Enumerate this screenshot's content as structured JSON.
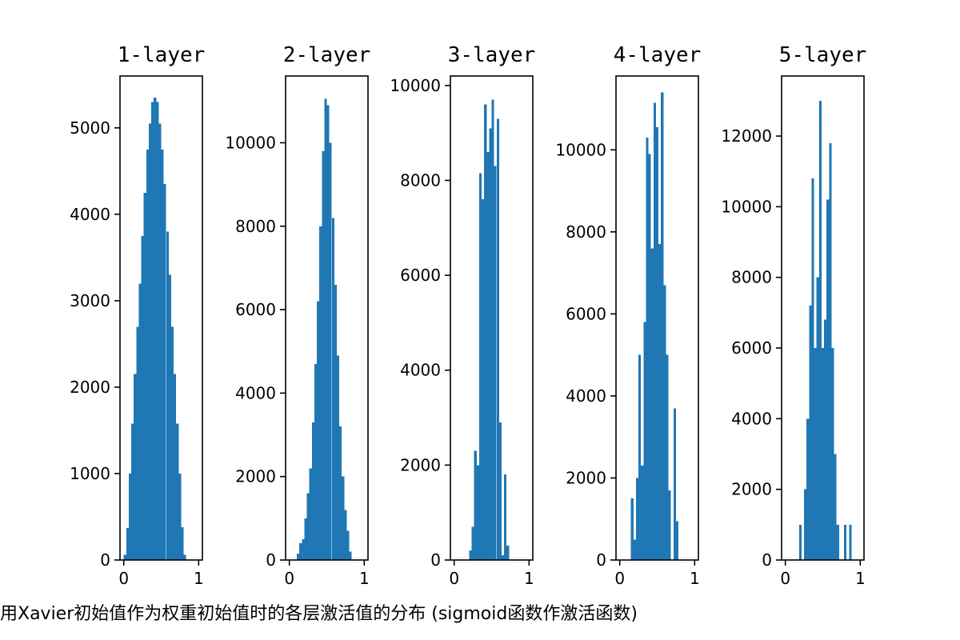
{
  "figure": {
    "caption": "用Xavier初始值作为权重初始值时的各层激活值的分布 (sigmoid函数作激活函数)"
  },
  "colors": {
    "bar": "#1f77b4",
    "axis": "#000000",
    "background": "#ffffff"
  },
  "chart_data": [
    {
      "type": "bar",
      "title": "1-layer",
      "xlim": [
        -0.05,
        1.05
      ],
      "ylim": [
        0,
        5600
      ],
      "xticks": [
        0,
        1
      ],
      "yticks": [
        0,
        1000,
        2000,
        3000,
        4000,
        5000
      ],
      "bin_width": 0.0333,
      "bins_start": [
        0.0,
        0.0333,
        0.0667,
        0.1,
        0.1333,
        0.1667,
        0.2,
        0.2333,
        0.2667,
        0.3,
        0.3333,
        0.3667,
        0.4,
        0.4333,
        0.4667,
        0.5,
        0.5333,
        0.5667,
        0.6,
        0.6333,
        0.6667,
        0.7,
        0.7333,
        0.7667,
        0.8,
        0.8333,
        0.8667,
        0.9,
        0.9333,
        0.9667
      ],
      "counts": [
        60,
        370,
        1000,
        1580,
        2150,
        2700,
        3200,
        3750,
        4250,
        4750,
        5050,
        5300,
        5350,
        5300,
        5050,
        4750,
        4350,
        3800,
        3300,
        2700,
        2150,
        1580,
        1000,
        380,
        60,
        0,
        0,
        0,
        0,
        0
      ]
    },
    {
      "type": "bar",
      "title": "2-layer",
      "xlim": [
        -0.05,
        1.05
      ],
      "ylim": [
        0,
        11600
      ],
      "xticks": [
        0,
        1
      ],
      "yticks": [
        0,
        2000,
        4000,
        6000,
        8000,
        10000
      ],
      "bin_width": 0.0333,
      "bins_start": [
        0.1,
        0.1333,
        0.1667,
        0.2,
        0.2333,
        0.2667,
        0.3,
        0.3333,
        0.3667,
        0.4,
        0.4333,
        0.4667,
        0.5,
        0.5333,
        0.5667,
        0.6,
        0.6333,
        0.6667,
        0.7,
        0.7333,
        0.7667,
        0.8,
        0.8333
      ],
      "counts": [
        150,
        400,
        500,
        1000,
        1600,
        2200,
        3300,
        4700,
        6200,
        8000,
        9800,
        11050,
        10900,
        10000,
        8200,
        6600,
        4900,
        3200,
        2000,
        1200,
        700,
        200,
        0
      ]
    },
    {
      "type": "bar",
      "title": "3-layer",
      "xlim": [
        -0.05,
        1.05
      ],
      "ylim": [
        0,
        10200
      ],
      "xticks": [
        0,
        1
      ],
      "yticks": [
        0,
        2000,
        4000,
        6000,
        8000,
        10000
      ],
      "bin_width": 0.0333,
      "bins_start": [
        0.2,
        0.2333,
        0.2667,
        0.3,
        0.3333,
        0.3667,
        0.4,
        0.4333,
        0.4667,
        0.5,
        0.5333,
        0.5667,
        0.6,
        0.6333,
        0.6667,
        0.7,
        0.7333
      ],
      "counts": [
        200,
        700,
        2300,
        2000,
        8150,
        7600,
        9600,
        8600,
        9100,
        9700,
        8300,
        9300,
        2900,
        100,
        1800,
        300,
        0
      ]
    },
    {
      "type": "bar",
      "title": "4-layer",
      "xlim": [
        -0.05,
        1.05
      ],
      "ylim": [
        0,
        11800
      ],
      "xticks": [
        0,
        1
      ],
      "yticks": [
        0,
        2000,
        4000,
        6000,
        8000,
        10000
      ],
      "bin_width": 0.0333,
      "bins_start": [
        0.15,
        0.1833,
        0.2167,
        0.25,
        0.2833,
        0.3167,
        0.35,
        0.3833,
        0.4167,
        0.45,
        0.4833,
        0.5167,
        0.55,
        0.5833,
        0.6167,
        0.65,
        0.6833,
        0.7167,
        0.75
      ],
      "counts": [
        1500,
        500,
        2000,
        5000,
        2300,
        5800,
        10300,
        9900,
        7600,
        11150,
        10550,
        7700,
        11400,
        6700,
        5000,
        1700,
        0,
        3700,
        950
      ],
      "counts_note": "approximate heights"
    },
    {
      "type": "bar",
      "title": "5-layer",
      "xlim": [
        -0.05,
        1.05
      ],
      "ylim": [
        0,
        13700
      ],
      "xticks": [
        0,
        1
      ],
      "yticks": [
        0,
        2000,
        4000,
        6000,
        8000,
        10000,
        12000
      ],
      "bin_width": 0.0333,
      "bins_start": [
        0.15,
        0.1833,
        0.2167,
        0.25,
        0.2833,
        0.3167,
        0.35,
        0.3833,
        0.4167,
        0.45,
        0.4833,
        0.5167,
        0.55,
        0.5833,
        0.6167,
        0.65,
        0.6833,
        0.7167,
        0.75,
        0.7833,
        0.8167,
        0.85
      ],
      "counts": [
        0,
        1000,
        0,
        2000,
        4000,
        7200,
        10800,
        6000,
        8000,
        13000,
        6000,
        6800,
        10200,
        11800,
        6000,
        3000,
        1000,
        0,
        0,
        1000,
        0,
        1000
      ],
      "counts_note": "approximate heights"
    }
  ]
}
